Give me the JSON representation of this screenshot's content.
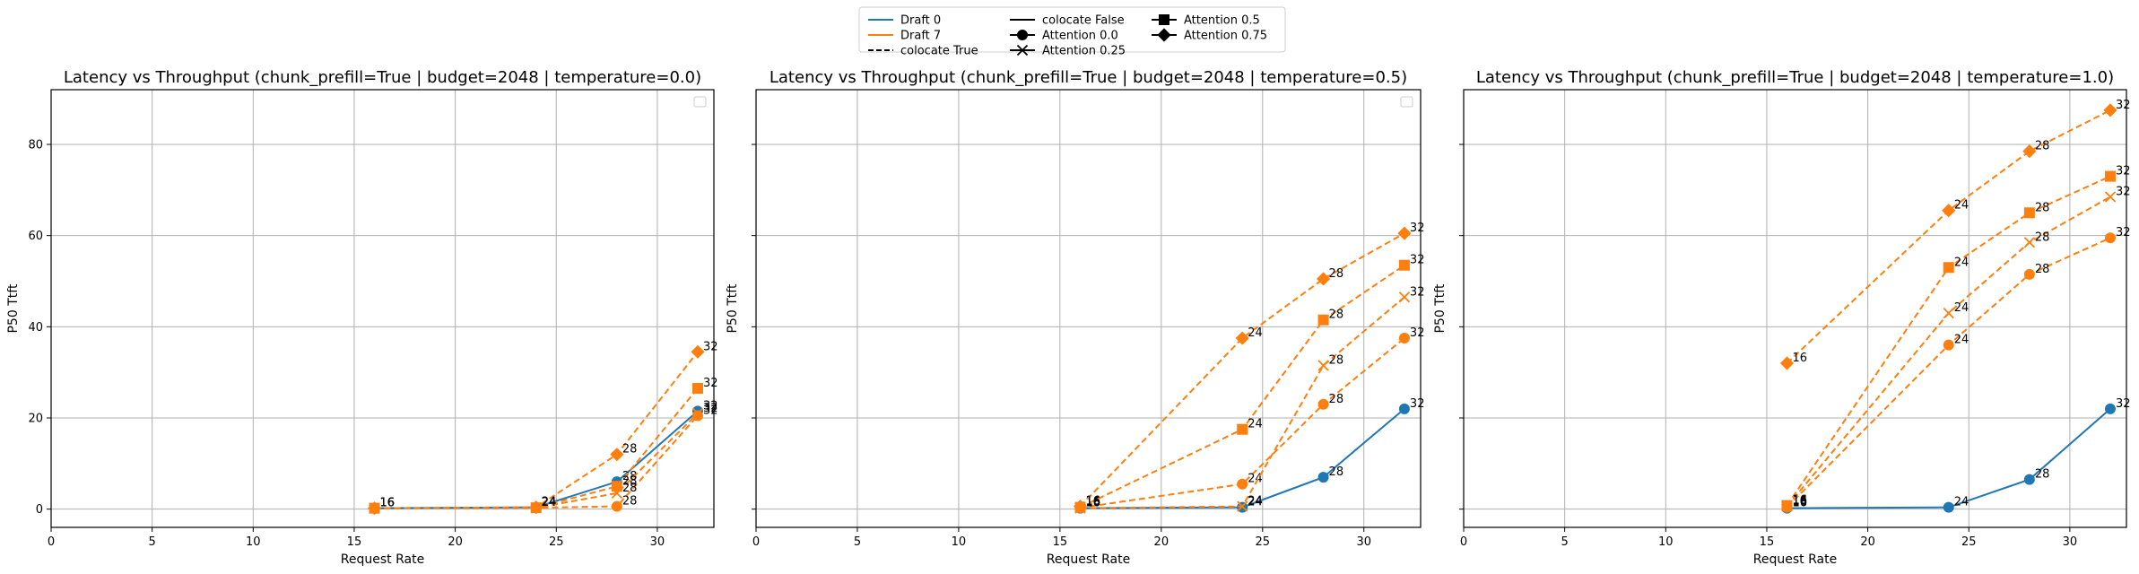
{
  "legend": {
    "entries": [
      {
        "label": "Draft 0",
        "kind": "color",
        "color": "#1f77b4"
      },
      {
        "label": "Draft 7",
        "kind": "color",
        "color": "#ff7f0e"
      },
      {
        "label": "colocate True",
        "kind": "dash"
      },
      {
        "label": "colocate False",
        "kind": "solid"
      },
      {
        "label": "Attention 0.0",
        "kind": "marker",
        "marker": "circle"
      },
      {
        "label": "Attention 0.25",
        "kind": "marker",
        "marker": "x"
      },
      {
        "label": "Attention 0.5",
        "kind": "marker",
        "marker": "square"
      },
      {
        "label": "Attention 0.75",
        "kind": "marker",
        "marker": "diamond"
      }
    ]
  },
  "chart_data": [
    {
      "type": "line",
      "title": "Latency vs Throughput (chunk_prefill=True | budget=2048 | temperature=0.0)",
      "xlabel": "Request Rate",
      "ylabel": "P50 Ttft",
      "xlim": [
        0,
        32.8
      ],
      "ylim": [
        -4,
        92
      ],
      "xticks": [
        0,
        5,
        10,
        15,
        20,
        25,
        30
      ],
      "yticks": [
        0,
        20,
        40,
        60,
        80
      ],
      "ytick_labels_shown": true,
      "grid": true,
      "empty_legend": "upper right",
      "series": [
        {
          "draft": "Draft 0",
          "colocate": "colocate False",
          "attention": "Attention 0.0",
          "color": "#1f77b4",
          "marker": "circle",
          "dashed": false,
          "x": [
            16,
            24,
            28,
            32
          ],
          "y": [
            0.2,
            0.4,
            6,
            21.5
          ],
          "labels": [
            "16",
            "24",
            "28",
            "32"
          ]
        },
        {
          "draft": "Draft 7",
          "colocate": "colocate True",
          "attention": "Attention 0.0",
          "color": "#ff7f0e",
          "marker": "circle",
          "dashed": true,
          "x": [
            16,
            24,
            28,
            32
          ],
          "y": [
            0.2,
            0.3,
            0.6,
            20.5
          ],
          "labels": [
            "16",
            "24",
            "28",
            "32"
          ]
        },
        {
          "draft": "Draft 7",
          "colocate": "colocate True",
          "attention": "Attention 0.25",
          "color": "#ff7f0e",
          "marker": "x",
          "dashed": true,
          "x": [
            16,
            24,
            28,
            32
          ],
          "y": [
            0.2,
            0.3,
            3.5,
            21
          ],
          "labels": [
            "16",
            "24",
            "28",
            "32"
          ]
        },
        {
          "draft": "Draft 7",
          "colocate": "colocate True",
          "attention": "Attention 0.5",
          "color": "#ff7f0e",
          "marker": "square",
          "dashed": true,
          "x": [
            16,
            24,
            28,
            32
          ],
          "y": [
            0.2,
            0.3,
            5,
            26.5
          ],
          "labels": [
            "16",
            "24",
            "28",
            "32"
          ]
        },
        {
          "draft": "Draft 7",
          "colocate": "colocate True",
          "attention": "Attention 0.75",
          "color": "#ff7f0e",
          "marker": "diamond",
          "dashed": true,
          "x": [
            16,
            24,
            28,
            32
          ],
          "y": [
            0.2,
            0.4,
            12,
            34.5
          ],
          "labels": [
            "16",
            "24",
            "28",
            "32"
          ]
        }
      ]
    },
    {
      "type": "line",
      "title": "Latency vs Throughput (chunk_prefill=True | budget=2048 | temperature=0.5)",
      "xlabel": "Request Rate",
      "ylabel": "P50 Ttft",
      "xlim": [
        0,
        32.8
      ],
      "ylim": [
        -4,
        92
      ],
      "xticks": [
        0,
        5,
        10,
        15,
        20,
        25,
        30
      ],
      "yticks": [
        0,
        20,
        40,
        60,
        80
      ],
      "ytick_labels_shown": false,
      "grid": true,
      "empty_legend": "upper right",
      "series": [
        {
          "draft": "Draft 0",
          "colocate": "colocate False",
          "attention": "Attention 0.0",
          "color": "#1f77b4",
          "marker": "circle",
          "dashed": false,
          "x": [
            16,
            24,
            28,
            32
          ],
          "y": [
            0.2,
            0.4,
            7,
            22
          ],
          "labels": [
            "16",
            "24",
            "28",
            "32"
          ]
        },
        {
          "draft": "Draft 7",
          "colocate": "colocate True",
          "attention": "Attention 0.0",
          "color": "#ff7f0e",
          "marker": "circle",
          "dashed": true,
          "x": [
            16,
            24,
            28,
            32
          ],
          "y": [
            0.3,
            5.5,
            23,
            37.5
          ],
          "labels": [
            "16",
            "24",
            "28",
            "32"
          ]
        },
        {
          "draft": "Draft 7",
          "colocate": "colocate True",
          "attention": "Attention 0.25",
          "color": "#ff7f0e",
          "marker": "x",
          "dashed": true,
          "x": [
            16,
            24,
            28,
            32
          ],
          "y": [
            0.2,
            0.6,
            31.5,
            46.5
          ],
          "labels": [
            "16",
            "24",
            "28",
            "32"
          ]
        },
        {
          "draft": "Draft 7",
          "colocate": "colocate True",
          "attention": "Attention 0.5",
          "color": "#ff7f0e",
          "marker": "square",
          "dashed": true,
          "x": [
            16,
            24,
            28,
            32
          ],
          "y": [
            0.4,
            17.5,
            41.5,
            53.5
          ],
          "labels": [
            "16",
            "24",
            "28",
            "32"
          ]
        },
        {
          "draft": "Draft 7",
          "colocate": "colocate True",
          "attention": "Attention 0.75",
          "color": "#ff7f0e",
          "marker": "diamond",
          "dashed": true,
          "x": [
            16,
            24,
            28,
            32
          ],
          "y": [
            0.6,
            37.5,
            50.5,
            60.5
          ],
          "labels": [
            "16",
            "24",
            "28",
            "32"
          ]
        }
      ]
    },
    {
      "type": "line",
      "title": "Latency vs Throughput (chunk_prefill=True | budget=2048 | temperature=1.0)",
      "xlabel": "Request Rate",
      "ylabel": "P50 Ttft",
      "xlim": [
        0,
        32.8
      ],
      "ylim": [
        -4,
        92
      ],
      "xticks": [
        0,
        5,
        10,
        15,
        20,
        25,
        30
      ],
      "yticks": [
        0,
        20,
        40,
        60,
        80
      ],
      "ytick_labels_shown": false,
      "grid": true,
      "empty_legend": "",
      "series": [
        {
          "draft": "Draft 0",
          "colocate": "colocate False",
          "attention": "Attention 0.0",
          "color": "#1f77b4",
          "marker": "circle",
          "dashed": false,
          "x": [
            16,
            24,
            28,
            32
          ],
          "y": [
            0.2,
            0.4,
            6.5,
            22
          ],
          "labels": [
            "16",
            "24",
            "28",
            "32"
          ]
        },
        {
          "draft": "Draft 7",
          "colocate": "colocate True",
          "attention": "Attention 0.0",
          "color": "#ff7f0e",
          "marker": "circle",
          "dashed": true,
          "x": [
            16,
            24,
            28,
            32
          ],
          "y": [
            0.4,
            36,
            51.5,
            59.5
          ],
          "labels": [
            "16",
            "24",
            "28",
            "32"
          ]
        },
        {
          "draft": "Draft 7",
          "colocate": "colocate True",
          "attention": "Attention 0.25",
          "color": "#ff7f0e",
          "marker": "x",
          "dashed": true,
          "x": [
            16,
            24,
            28,
            32
          ],
          "y": [
            0.6,
            43,
            58.5,
            68.5
          ],
          "labels": [
            "16",
            "24",
            "28",
            "32"
          ]
        },
        {
          "draft": "Draft 7",
          "colocate": "colocate True",
          "attention": "Attention 0.5",
          "color": "#ff7f0e",
          "marker": "square",
          "dashed": true,
          "x": [
            16,
            24,
            28,
            32
          ],
          "y": [
            0.8,
            53,
            65,
            73
          ],
          "labels": [
            "16",
            "24",
            "28",
            "32"
          ]
        },
        {
          "draft": "Draft 7",
          "colocate": "colocate True",
          "attention": "Attention 0.75",
          "color": "#ff7f0e",
          "marker": "diamond",
          "dashed": true,
          "x": [
            16,
            24,
            28,
            32
          ],
          "y": [
            32,
            65.5,
            78.5,
            87.5
          ],
          "labels": [
            "16",
            "24",
            "28",
            "32"
          ]
        }
      ]
    }
  ]
}
